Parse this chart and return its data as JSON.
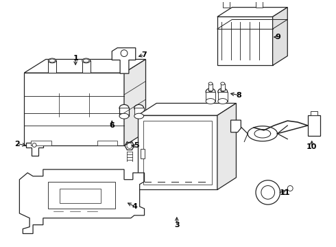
{
  "background_color": "#ffffff",
  "line_color": "#222222",
  "label_color": "#000000",
  "parts": [
    1,
    2,
    3,
    4,
    5,
    6,
    7,
    8,
    9,
    10,
    11
  ]
}
